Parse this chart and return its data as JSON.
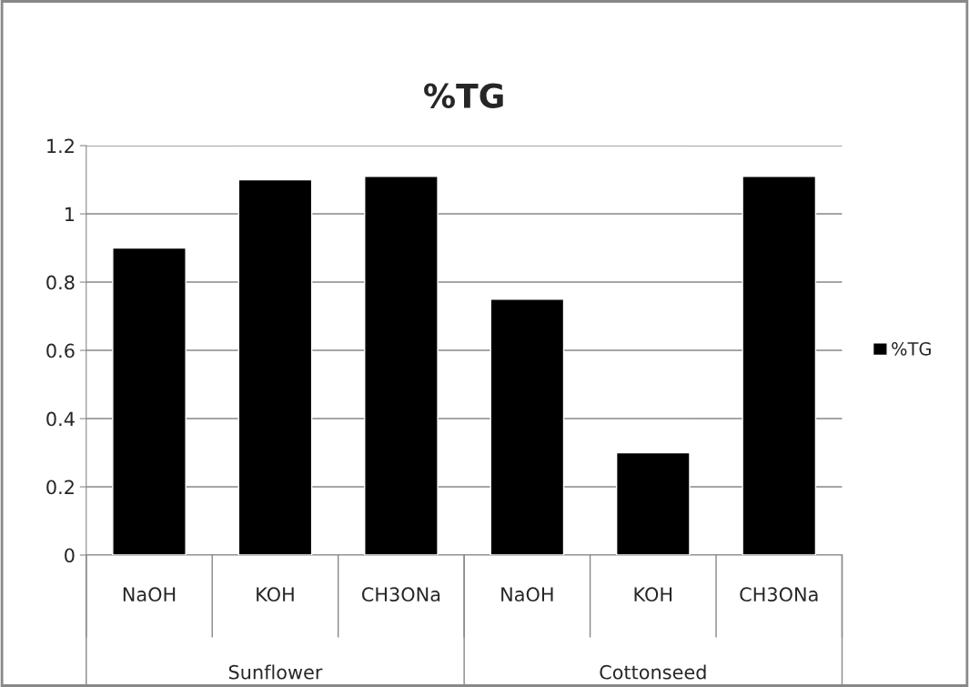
{
  "chart_data": {
    "type": "bar",
    "title": "%TG",
    "categories": [
      "NaOH",
      "KOH",
      "CH3ONa",
      "NaOH",
      "KOH",
      "CH3ONa"
    ],
    "series": [
      {
        "name": "%TG",
        "color": "#000000",
        "values": [
          0.9,
          1.1,
          1.11,
          0.75,
          0.3,
          1.11
        ]
      }
    ],
    "annotations": [
      "Sunflower",
      "Cottonseed"
    ],
    "ylim": [
      0,
      1.2
    ],
    "yticks": [
      0,
      0.2,
      0.4,
      0.6,
      0.8,
      1,
      1.2
    ],
    "grid": "y",
    "legend": "right"
  }
}
